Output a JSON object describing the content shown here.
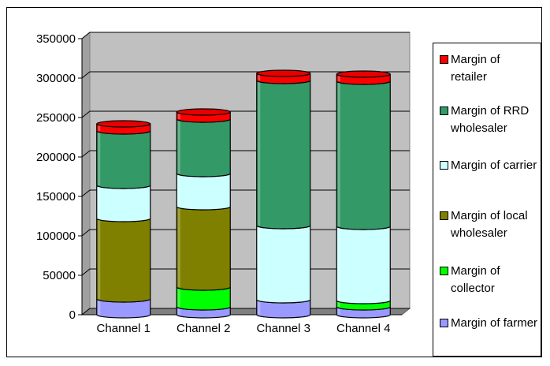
{
  "chart_data": {
    "type": "bar",
    "stacked": true,
    "style": "3d-cylinder",
    "categories": [
      "Channel 1",
      "Channel 2",
      "Channel 3",
      "Channel 4"
    ],
    "ylim": [
      0,
      350000
    ],
    "yticks": [
      "0",
      "50000",
      "100000",
      "150000",
      "200000",
      "250000",
      "300000",
      "350000"
    ],
    "grid": true,
    "legend_position": "right",
    "series": [
      {
        "name": "Margin of farmer",
        "color": "#9999ff",
        "values": [
          20000,
          10000,
          19000,
          10000
        ]
      },
      {
        "name": "Margin of collector",
        "color": "#00ff00",
        "values": [
          0,
          25000,
          0,
          8000
        ]
      },
      {
        "name": "Margin of local wholesaler",
        "color": "#808000",
        "values": [
          102000,
          102000,
          0,
          0
        ]
      },
      {
        "name": "Margin of carrier",
        "color": "#ccffff",
        "values": [
          42000,
          42000,
          94000,
          94000
        ]
      },
      {
        "name": "Margin of RRD wholesaler",
        "color": "#339966",
        "values": [
          69000,
          69000,
          184000,
          184000
        ]
      },
      {
        "name": "Margin of retailer",
        "color": "#ff0000",
        "values": [
          9000,
          9000,
          9000,
          9000
        ]
      }
    ],
    "legend_order": [
      5,
      4,
      3,
      2,
      1,
      0
    ],
    "plot_bg": "#c0c0c0"
  }
}
